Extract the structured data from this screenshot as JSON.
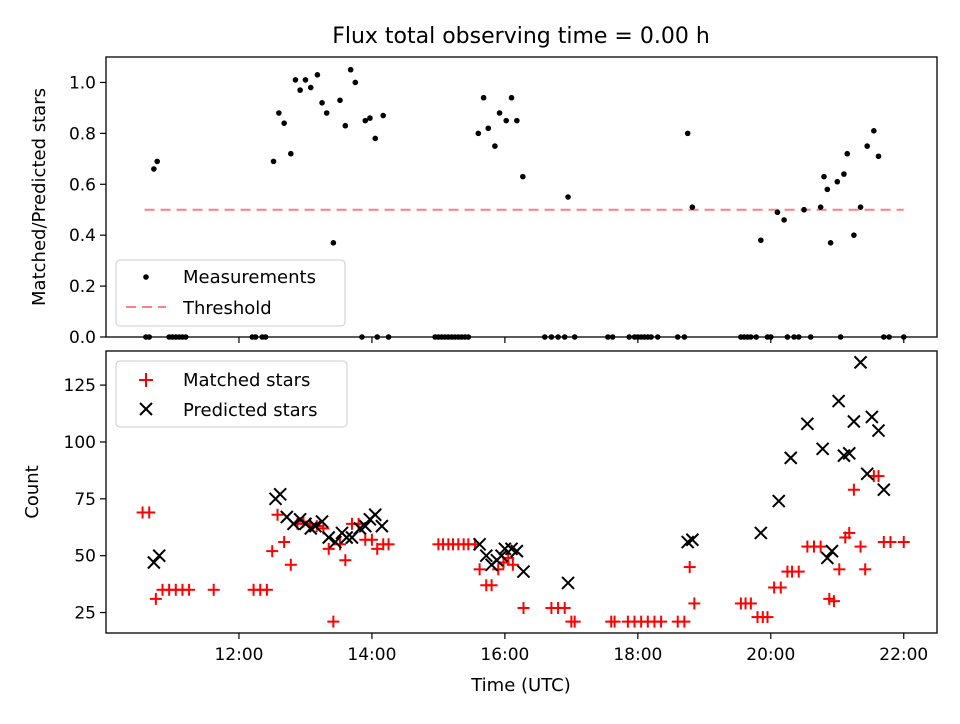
{
  "chart_data": [
    {
      "type": "scatter",
      "title": "Flux total observing time = 0.00 h",
      "xlabel": "",
      "ylabel": "Matched/Predicted stars",
      "xlim": [
        10.0,
        22.5
      ],
      "ylim": [
        0.0,
        1.1
      ],
      "yticks": [
        0.0,
        0.2,
        0.4,
        0.6,
        0.8,
        1.0
      ],
      "ytick_labels": [
        "0.0",
        "0.2",
        "0.4",
        "0.6",
        "0.8",
        "1.0"
      ],
      "grid": false,
      "legend": "lower-left",
      "threshold": {
        "name": "Threshold",
        "value": 0.5,
        "x": [
          10.58,
          22.0
        ],
        "color": "#ff8080"
      },
      "series": [
        {
          "name": "Measurements",
          "color": "#000000",
          "x": [
            10.6,
            10.65,
            10.72,
            10.77,
            10.95,
            11.0,
            11.05,
            11.1,
            11.15,
            11.2,
            12.2,
            12.25,
            12.35,
            12.4,
            12.52,
            12.6,
            12.68,
            12.78,
            12.85,
            12.92,
            13.0,
            13.08,
            13.18,
            13.25,
            13.32,
            13.42,
            13.52,
            13.6,
            13.68,
            13.75,
            13.85,
            13.9,
            13.97,
            14.05,
            14.08,
            14.17,
            14.25,
            14.95,
            15.0,
            15.05,
            15.1,
            15.15,
            15.2,
            15.25,
            15.3,
            15.35,
            15.4,
            15.45,
            15.6,
            15.68,
            15.75,
            15.85,
            15.92,
            16.02,
            16.1,
            16.18,
            16.27,
            16.6,
            16.7,
            16.8,
            16.9,
            16.95,
            17.05,
            17.55,
            17.62,
            17.87,
            17.95,
            18.0,
            18.05,
            18.1,
            18.15,
            18.2,
            18.3,
            18.6,
            18.7,
            18.75,
            18.82,
            19.55,
            19.6,
            19.65,
            19.7,
            19.78,
            19.85,
            19.95,
            20.0,
            20.1,
            20.2,
            20.25,
            20.35,
            20.42,
            20.5,
            20.6,
            20.75,
            20.8,
            20.85,
            20.9,
            21.0,
            21.05,
            21.1,
            21.15,
            21.25,
            21.35,
            21.45,
            21.55,
            21.62,
            21.7,
            21.78,
            22.0
          ],
          "y": [
            0.0,
            0.0,
            0.66,
            0.69,
            0.0,
            0.0,
            0.0,
            0.0,
            0.0,
            0.0,
            0.0,
            0.0,
            0.0,
            0.0,
            0.69,
            0.88,
            0.84,
            0.72,
            1.01,
            0.97,
            1.01,
            0.98,
            1.03,
            0.92,
            0.88,
            0.37,
            0.93,
            0.83,
            1.05,
            1.0,
            0.0,
            0.85,
            0.86,
            0.78,
            0.0,
            0.87,
            0.0,
            0.0,
            0.0,
            0.0,
            0.0,
            0.0,
            0.0,
            0.0,
            0.0,
            0.0,
            0.0,
            0.0,
            0.8,
            0.94,
            0.82,
            0.75,
            0.88,
            0.85,
            0.94,
            0.85,
            0.63,
            0.0,
            0.0,
            0.0,
            0.0,
            0.55,
            0.0,
            0.0,
            0.0,
            0.0,
            0.0,
            0.0,
            0.0,
            0.0,
            0.0,
            0.0,
            0.0,
            0.0,
            0.0,
            0.8,
            0.51,
            0.0,
            0.0,
            0.0,
            0.0,
            0.0,
            0.38,
            0.0,
            0.0,
            0.49,
            0.46,
            0.0,
            0.0,
            0.0,
            0.5,
            0.0,
            0.51,
            0.63,
            0.58,
            0.37,
            0.61,
            0.0,
            0.64,
            0.72,
            0.4,
            0.51,
            0.75,
            0.81,
            0.71,
            0.0,
            0.0,
            0.0
          ]
        }
      ]
    },
    {
      "type": "scatter",
      "title": "",
      "xlabel": "Time (UTC)",
      "ylabel": "Count",
      "xlim": [
        10.0,
        22.5
      ],
      "ylim": [
        16,
        140
      ],
      "xticks": [
        12,
        14,
        16,
        18,
        20,
        22
      ],
      "xtick_labels": [
        "12:00",
        "14:00",
        "16:00",
        "18:00",
        "20:00",
        "22:00"
      ],
      "yticks": [
        25,
        50,
        75,
        100,
        125
      ],
      "ytick_labels": [
        "25",
        "50",
        "75",
        "100",
        "125"
      ],
      "grid": false,
      "legend": "upper-left",
      "series": [
        {
          "name": "Matched stars",
          "marker": "+",
          "color": "#ff0000",
          "x": [
            10.55,
            10.65,
            10.75,
            10.85,
            10.95,
            11.05,
            11.15,
            11.25,
            11.62,
            12.22,
            12.32,
            12.42,
            12.5,
            12.58,
            12.68,
            12.78,
            12.88,
            12.97,
            13.07,
            13.17,
            13.27,
            13.35,
            13.42,
            13.52,
            13.6,
            13.7,
            13.8,
            13.9,
            14.0,
            14.08,
            14.17,
            14.25,
            15.0,
            15.07,
            15.15,
            15.22,
            15.3,
            15.38,
            15.45,
            15.55,
            15.62,
            15.72,
            15.8,
            15.9,
            15.98,
            16.05,
            16.12,
            16.28,
            16.7,
            16.8,
            16.9,
            17.0,
            17.05,
            17.6,
            17.65,
            17.85,
            17.95,
            18.05,
            18.15,
            18.25,
            18.35,
            18.6,
            18.7,
            18.78,
            18.85,
            19.55,
            19.62,
            19.7,
            19.8,
            19.88,
            19.95,
            20.05,
            20.15,
            20.25,
            20.32,
            20.42,
            20.55,
            20.65,
            20.75,
            20.88,
            20.95,
            21.03,
            21.12,
            21.18,
            21.25,
            21.35,
            21.42,
            21.55,
            21.62,
            21.7,
            21.8,
            22.0
          ],
          "y": [
            69,
            69,
            31,
            35,
            35,
            35,
            35,
            35,
            35,
            35,
            35,
            35,
            52,
            68,
            56,
            46,
            64,
            65,
            64,
            63,
            62,
            53,
            21,
            55,
            48,
            64,
            64,
            57,
            57,
            53,
            55,
            55,
            55,
            55,
            55,
            55,
            55,
            55,
            55,
            55,
            44,
            37,
            37,
            44,
            47,
            49,
            46,
            27,
            27,
            27,
            27,
            21,
            21,
            21,
            21,
            21,
            21,
            21,
            21,
            21,
            21,
            21,
            21,
            45,
            29,
            29,
            29,
            29,
            23,
            23,
            23,
            36,
            36,
            43,
            43,
            43,
            54,
            54,
            54,
            31,
            30,
            44,
            58,
            60,
            79,
            54,
            44,
            85,
            85,
            56,
            56,
            56
          ]
        },
        {
          "name": "Predicted stars",
          "marker": "x",
          "color": "#000000",
          "x": [
            10.72,
            10.8,
            12.55,
            12.62,
            12.72,
            12.82,
            12.92,
            13.0,
            13.08,
            13.15,
            13.25,
            13.35,
            13.45,
            13.55,
            13.62,
            13.7,
            13.82,
            13.9,
            13.97,
            14.05,
            14.15,
            15.62,
            15.72,
            15.8,
            15.88,
            15.95,
            16.0,
            16.1,
            16.18,
            16.28,
            16.95,
            18.75,
            18.82,
            19.85,
            20.12,
            20.3,
            20.55,
            20.78,
            20.85,
            20.92,
            21.02,
            21.1,
            21.18,
            21.25,
            21.35,
            21.45,
            21.52,
            21.62,
            21.7
          ],
          "y": [
            47,
            50,
            75,
            77,
            67,
            64,
            66,
            64,
            62,
            63,
            65,
            58,
            56,
            60,
            58,
            58,
            62,
            63,
            66,
            68,
            63,
            55,
            50,
            46,
            48,
            50,
            53,
            53,
            52,
            43,
            38,
            56,
            57,
            60,
            74,
            93,
            108,
            97,
            49,
            52,
            118,
            94,
            95,
            109,
            135,
            86,
            111,
            105,
            79
          ]
        }
      ]
    }
  ]
}
